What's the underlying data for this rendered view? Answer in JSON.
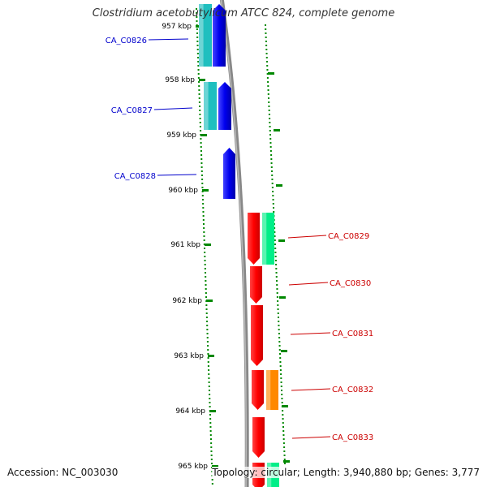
{
  "title": "Clostridium acetobutylicum ATCC 824, complete genome",
  "footer": {
    "accession": "Accession: NC_003030",
    "summary": "Topology: circular; Length: 3,940,880 bp; Genes: 3,777"
  },
  "ticks": [
    "957 kbp",
    "958 kbp",
    "959 kbp",
    "960 kbp",
    "961 kbp",
    "962 kbp",
    "963 kbp",
    "964 kbp",
    "965 kbp"
  ],
  "genes": [
    {
      "name": "CA_C0826",
      "strand": "-",
      "gene_color": "#0000ee",
      "cds_color": "#1fbfbf",
      "label_color": "#0000cc"
    },
    {
      "name": "CA_C0827",
      "strand": "-",
      "gene_color": "#0000ee",
      "cds_color": "#1fbfbf",
      "label_color": "#0000cc"
    },
    {
      "name": "CA_C0828",
      "strand": "-",
      "gene_color": "#0000ee",
      "cds_color": null,
      "label_color": "#0000cc"
    },
    {
      "name": "CA_C0829",
      "strand": "+",
      "gene_color": "#ff0000",
      "cds_color": "#00ee88",
      "label_color": "#cc0000"
    },
    {
      "name": "CA_C0830",
      "strand": "+",
      "gene_color": "#ff0000",
      "cds_color": null,
      "label_color": "#cc0000"
    },
    {
      "name": "CA_C0831",
      "strand": "+",
      "gene_color": "#ff0000",
      "cds_color": null,
      "label_color": "#cc0000"
    },
    {
      "name": "CA_C0832",
      "strand": "+",
      "gene_color": "#ff0000",
      "cds_color": "#ff8800",
      "label_color": "#cc0000"
    },
    {
      "name": "CA_C0833",
      "strand": "+",
      "gene_color": "#ff0000",
      "cds_color": null,
      "label_color": "#cc0000"
    }
  ],
  "colors": {
    "backbone": "#888888",
    "ticks": "#008800",
    "dots": "#008800",
    "tick_label": "#000000"
  }
}
